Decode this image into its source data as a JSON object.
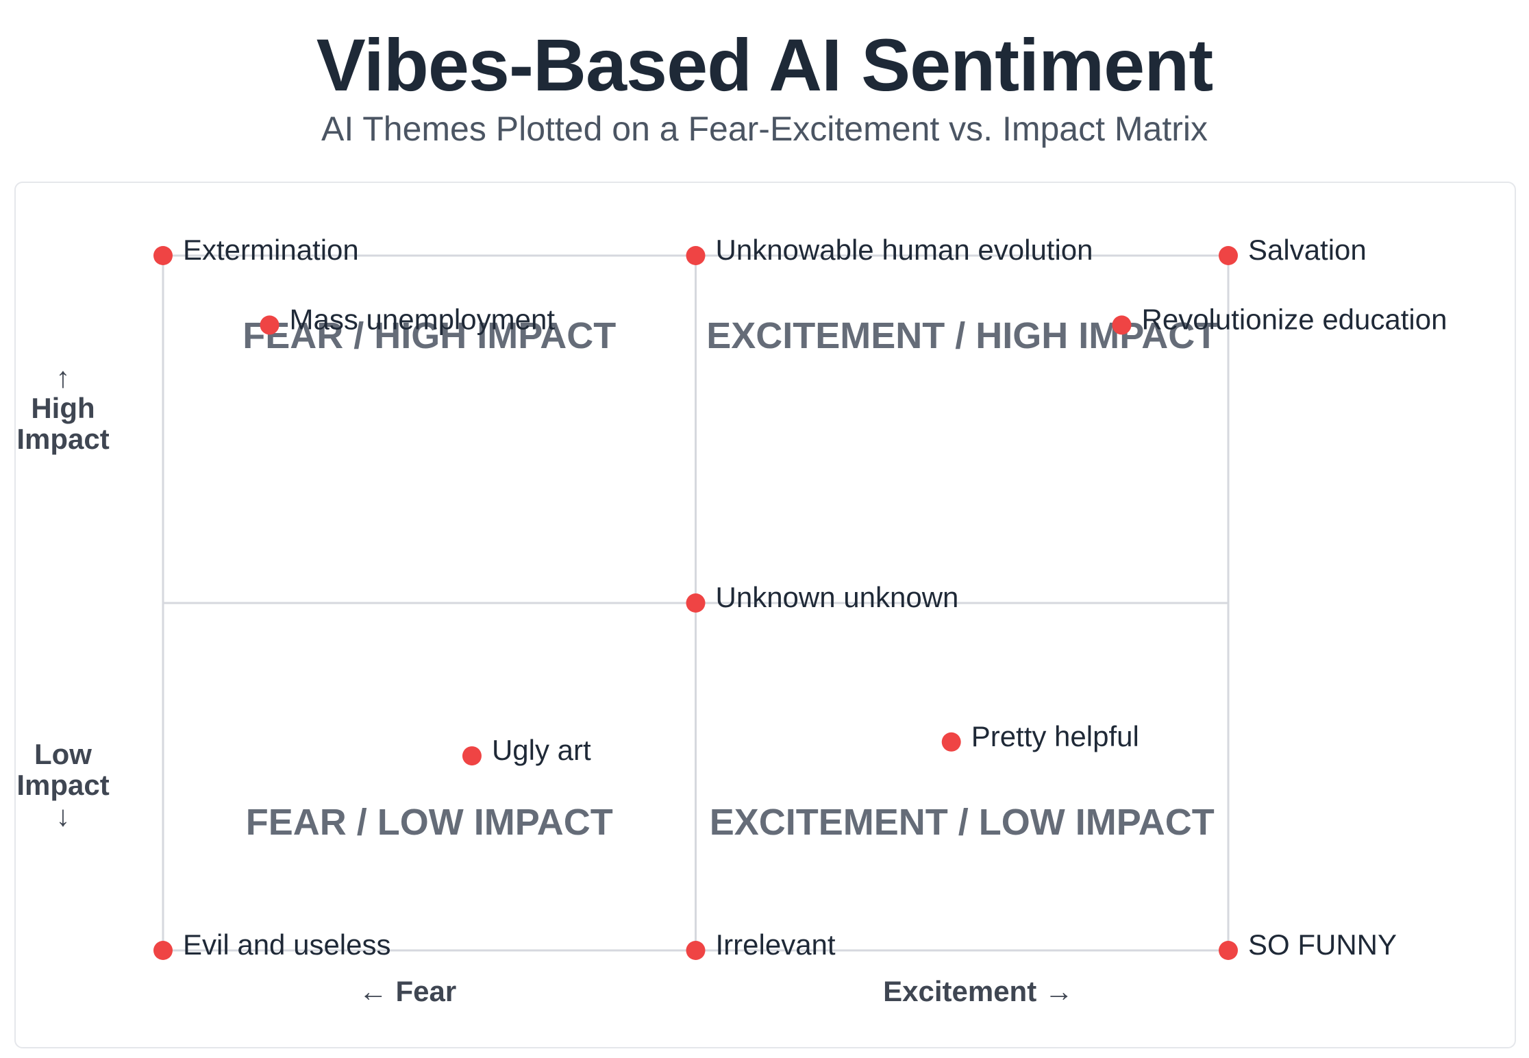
{
  "title": "Vibes-Based AI Sentiment",
  "subtitle": "AI Themes Plotted on a Fear-Excitement vs. Impact Matrix",
  "y_axis": {
    "high": {
      "arrow": "↑",
      "line1": "High",
      "line2": "Impact"
    },
    "low": {
      "line1": "Low",
      "line2": "Impact",
      "arrow": "↓"
    }
  },
  "x_axis": {
    "left": "←  Fear",
    "right": "Excitement →"
  },
  "colors": {
    "point": "#ef4444",
    "grid": "#d6d8de",
    "quadrant_text": "#656c78",
    "label_text": "#1f2937",
    "axis_text": "#3f4652"
  },
  "chart_data": {
    "type": "scatter",
    "title": "Vibes-Based AI Sentiment",
    "subtitle": "AI Themes Plotted on a Fear-Excitement vs. Impact Matrix",
    "xlabel": "Fear ← → Excitement",
    "ylabel": "Low Impact ↓ ↑ High Impact",
    "xlim": [
      -1,
      1
    ],
    "ylim": [
      -1,
      1
    ],
    "grid": true,
    "quadrants": [
      {
        "label": "FEAR / HIGH IMPACT",
        "position": "top-left"
      },
      {
        "label": "EXCITEMENT / HIGH IMPACT",
        "position": "top-right"
      },
      {
        "label": "FEAR / LOW IMPACT",
        "position": "bottom-left"
      },
      {
        "label": "EXCITEMENT / LOW IMPACT",
        "position": "bottom-right"
      }
    ],
    "points": [
      {
        "label": "Extermination",
        "x": -1,
        "y": 1
      },
      {
        "label": "Unknowable human evolution",
        "x": 0,
        "y": 1
      },
      {
        "label": "Salvation",
        "x": 1,
        "y": 1
      },
      {
        "label": "Mass unemployment",
        "x": -0.8,
        "y": 0.8
      },
      {
        "label": "Revolutionize education",
        "x": 0.8,
        "y": 0.8
      },
      {
        "label": "Unknown unknown",
        "x": 0,
        "y": 0
      },
      {
        "label": "Pretty helpful",
        "x": 0.48,
        "y": -0.4
      },
      {
        "label": "Ugly art",
        "x": -0.42,
        "y": -0.44
      },
      {
        "label": "Evil and useless",
        "x": -1,
        "y": -1
      },
      {
        "label": "Irrelevant",
        "x": 0,
        "y": -1
      },
      {
        "label": "SO FUNNY",
        "x": 1,
        "y": -1
      }
    ]
  }
}
